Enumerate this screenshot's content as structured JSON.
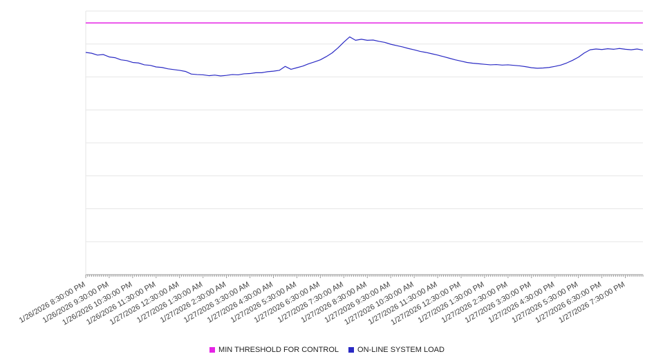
{
  "chart_data": {
    "type": "line",
    "title": "",
    "xlabel": "",
    "ylabel": "",
    "ylim": [
      0,
      100
    ],
    "grid": "horizontal",
    "grid_divisions": 8,
    "x_minor_ticks_per_hour": 12,
    "x_label_rotation_deg": -30,
    "x_tick_labels": [
      "1/26/2026 8:30:00 PM",
      "1/26/2026 9:30:00 PM",
      "1/26/2026 10:30:00 PM",
      "1/26/2026 11:30:00 PM",
      "1/27/2026 12:30:00 AM",
      "1/27/2026 1:30:00 AM",
      "1/27/2026 2:30:00 AM",
      "1/27/2026 3:30:00 AM",
      "1/27/2026 4:30:00 AM",
      "1/27/2026 5:30:00 AM",
      "1/27/2026 6:30:00 AM",
      "1/27/2026 7:30:00 AM",
      "1/27/2026 8:30:00 AM",
      "1/27/2026 9:30:00 AM",
      "1/27/2026 10:30:00 AM",
      "1/27/2026 11:30:00 AM",
      "1/27/2026 12:30:00 PM",
      "1/27/2026 1:30:00 PM",
      "1/27/2026 2:30:00 PM",
      "1/27/2026 3:30:00 PM",
      "1/27/2026 4:30:00 PM",
      "1/27/2026 5:30:00 PM",
      "1/27/2026 6:30:00 PM",
      "1/27/2026 7:30:00 PM"
    ],
    "series": [
      {
        "name": "MIN THRESHOLD FOR CONTROL",
        "type": "flat-line",
        "color": "#e523e5",
        "value": 95.5
      },
      {
        "name": "ON-LINE SYSTEM LOAD",
        "type": "line",
        "color": "#2a2ac4",
        "x_start_hour": 0,
        "x_step_hours": 0.25,
        "values": [
          84.3,
          84.0,
          83.3,
          83.5,
          82.6,
          82.3,
          81.5,
          81.2,
          80.5,
          80.3,
          79.6,
          79.4,
          78.8,
          78.6,
          78.1,
          77.8,
          77.5,
          77.1,
          76.1,
          75.9,
          75.8,
          75.5,
          75.7,
          75.4,
          75.6,
          75.9,
          75.8,
          76.2,
          76.3,
          76.6,
          76.6,
          77.0,
          77.2,
          77.5,
          79.0,
          77.9,
          78.5,
          79.1,
          80.0,
          80.7,
          81.5,
          82.7,
          84.1,
          86.0,
          88.2,
          90.2,
          88.9,
          89.3,
          88.9,
          89.0,
          88.5,
          88.1,
          87.4,
          86.9,
          86.4,
          85.8,
          85.3,
          84.7,
          84.3,
          83.8,
          83.3,
          82.7,
          82.1,
          81.5,
          81.0,
          80.5,
          80.2,
          80.0,
          79.8,
          79.6,
          79.7,
          79.5,
          79.6,
          79.4,
          79.2,
          78.9,
          78.5,
          78.3,
          78.4,
          78.6,
          79.0,
          79.5,
          80.3,
          81.3,
          82.5,
          84.1,
          85.3,
          85.6,
          85.4,
          85.7,
          85.5,
          85.8,
          85.5,
          85.3,
          85.6,
          85.2
        ]
      }
    ],
    "legend": {
      "position": "bottom-center",
      "entries": [
        {
          "label": "MIN THRESHOLD FOR CONTROL",
          "color": "#e523e5"
        },
        {
          "label": "ON-LINE SYSTEM LOAD",
          "color": "#2a2ac4"
        }
      ]
    },
    "colors": {
      "background": "#ffffff",
      "gridline": "#e6e6e6",
      "axis": "#999999",
      "tick": "#999999",
      "label_text": "#404040"
    }
  }
}
